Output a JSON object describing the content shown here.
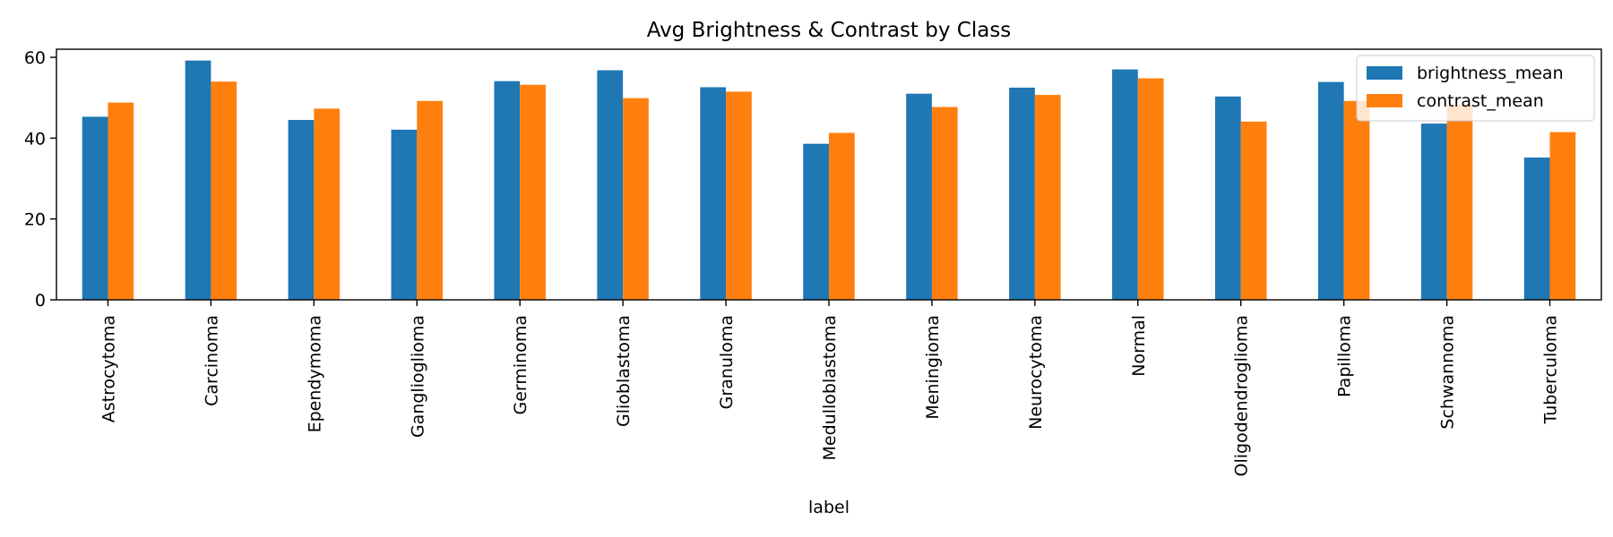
{
  "colors": {
    "brightness": "#1f77b4",
    "contrast": "#ff7f0e"
  },
  "chart_data": {
    "type": "bar",
    "title": "Avg Brightness & Contrast by Class",
    "xlabel": "label",
    "ylabel": "",
    "ylim": [
      0,
      62
    ],
    "yticks": [
      0,
      20,
      40,
      60
    ],
    "grid": false,
    "legend": "top-right",
    "categories": [
      "Astrocytoma",
      "Carcinoma",
      "Ependymoma",
      "Ganglioglioma",
      "Germinoma",
      "Glioblastoma",
      "Granuloma",
      "Medulloblastoma",
      "Meningioma",
      "Neurocytoma",
      "Normal",
      "Oligodendroglioma",
      "Papilloma",
      "Schwannoma",
      "Tuberculoma"
    ],
    "series": [
      {
        "name": "brightness_mean",
        "color": "#1f77b4",
        "values": [
          45.3,
          59.2,
          44.5,
          42.1,
          54.1,
          56.8,
          52.6,
          38.6,
          51.0,
          52.5,
          57.0,
          50.3,
          53.9,
          43.6,
          35.2
        ]
      },
      {
        "name": "contrast_mean",
        "color": "#ff7f0e",
        "values": [
          48.8,
          54.0,
          47.3,
          49.2,
          53.2,
          49.9,
          51.5,
          41.3,
          47.7,
          50.7,
          54.8,
          44.1,
          49.2,
          48.3,
          41.5
        ]
      }
    ]
  }
}
